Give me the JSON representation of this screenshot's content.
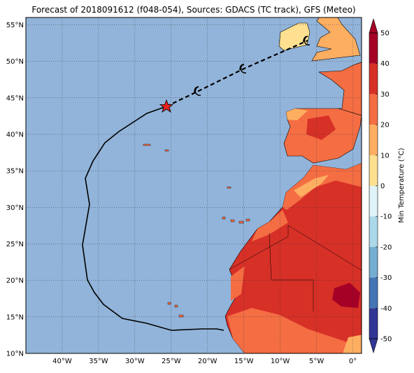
{
  "map": {
    "title": "Forecast of 2018091612 (f048-054), Sources: GDACS (TC track), GFS (Meteo)",
    "lon_range": [
      -45,
      1.2
    ],
    "lat_range": [
      10,
      56
    ],
    "lon_ticks": [
      {
        "value": -40,
        "label": "40°W"
      },
      {
        "value": -35,
        "label": "35°W"
      },
      {
        "value": -30,
        "label": "30°W"
      },
      {
        "value": -25,
        "label": "25°W"
      },
      {
        "value": -20,
        "label": "20°W"
      },
      {
        "value": -15,
        "label": "15°W"
      },
      {
        "value": -10,
        "label": "10°W"
      },
      {
        "value": -5,
        "label": "5°W"
      },
      {
        "value": 0,
        "label": "0°"
      }
    ],
    "lat_ticks": [
      {
        "value": 10,
        "label": "10°N"
      },
      {
        "value": 15,
        "label": "15°N"
      },
      {
        "value": 20,
        "label": "20°N"
      },
      {
        "value": 25,
        "label": "25°N"
      },
      {
        "value": 30,
        "label": "30°N"
      },
      {
        "value": 35,
        "label": "35°N"
      },
      {
        "value": 40,
        "label": "40°N"
      },
      {
        "value": 45,
        "label": "45°N"
      },
      {
        "value": 50,
        "label": "50°N"
      },
      {
        "value": 55,
        "label": "55°N"
      }
    ],
    "colorbar": {
      "label": "Min Temperature (°C)",
      "range": [
        -50,
        50
      ],
      "ticks": [
        -50,
        -40,
        -30,
        -20,
        -10,
        0,
        10,
        20,
        30,
        40,
        50
      ],
      "colors": [
        "#313695",
        "#4575b4",
        "#74add1",
        "#abd9e9",
        "#e0f3f8",
        "#fee090",
        "#fdae61",
        "#f46d43",
        "#d73027",
        "#a50026"
      ]
    }
  }
}
